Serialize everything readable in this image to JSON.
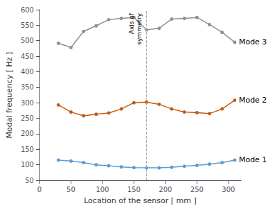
{
  "chart_data": {
    "type": "line",
    "x": [
      30,
      50,
      70,
      90,
      110,
      130,
      150,
      170,
      190,
      210,
      230,
      250,
      270,
      290,
      310
    ],
    "series": [
      {
        "name": "Mode 3",
        "color": "#909090",
        "marker": "circle",
        "values": [
          492,
          478,
          530,
          548,
          568,
          572,
          575,
          535,
          540,
          570,
          572,
          575,
          552,
          527,
          495
        ]
      },
      {
        "name": "Mode 2",
        "color": "#c55a11",
        "marker": "circle",
        "values": [
          293,
          270,
          258,
          263,
          267,
          280,
          300,
          302,
          295,
          280,
          270,
          268,
          265,
          280,
          308
        ]
      },
      {
        "name": "Mode 1",
        "color": "#5b9bd5",
        "marker": "circle",
        "values": [
          115,
          112,
          107,
          100,
          97,
          93,
          91,
          90,
          90,
          92,
          95,
          98,
          102,
          107,
          115
        ]
      }
    ],
    "annotations": [
      {
        "text": "Axis of\nsymmetry",
        "x": 170
      }
    ],
    "xlabel": "Location of the sensor [ mm ]",
    "ylabel": "Modal frequency [ Hz ]",
    "xlim": [
      0,
      320
    ],
    "xticks": [
      0,
      50,
      100,
      150,
      200,
      250,
      300
    ],
    "ylim": [
      50,
      600
    ],
    "yticks": [
      50,
      100,
      150,
      200,
      250,
      300,
      350,
      400,
      450,
      500,
      550,
      600
    ],
    "grid": false
  }
}
